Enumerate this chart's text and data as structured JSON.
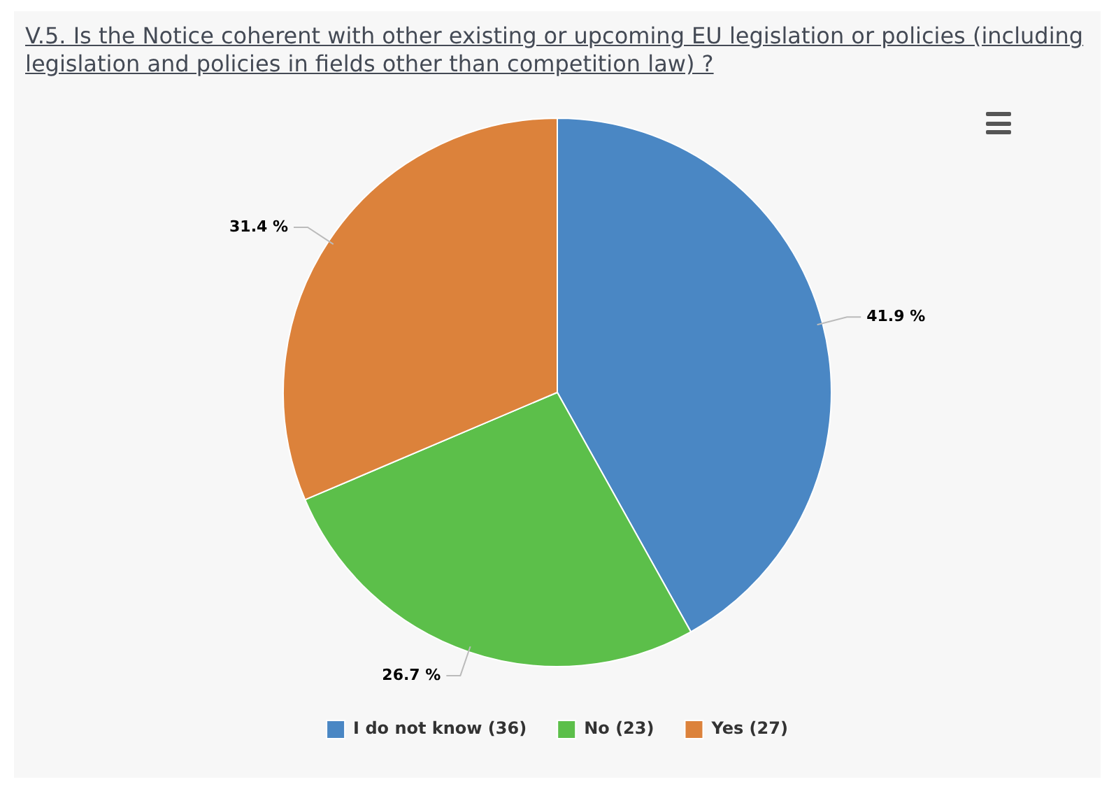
{
  "chart_data": {
    "type": "pie",
    "title": "V.5. Is the Notice coherent with other existing or upcoming EU legislation or policies (including legislation and policies in fields other than competition law) ?",
    "categories": [
      "I do not know (36)",
      "No (23)",
      "Yes (27)"
    ],
    "values": [
      41.9,
      26.7,
      31.4
    ],
    "colors": [
      "#4a87c4",
      "#5cbf4a",
      "#dc823b"
    ],
    "value_labels": [
      "41.9 %",
      "26.7 %",
      "31.4 %"
    ],
    "legend": "bottom"
  }
}
